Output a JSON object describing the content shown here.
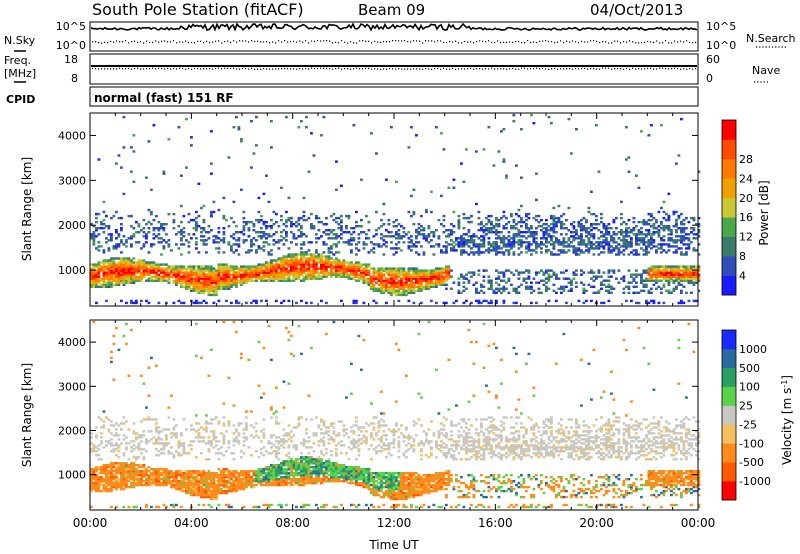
{
  "header": {
    "station": "South Pole Station (fitACF)",
    "beam": "Beam 09",
    "date": "04/Oct/2013"
  },
  "side_labels": {
    "nsky": "N.Sky",
    "freq_line1": "Freq.",
    "freq_line2": "[MHz]",
    "cpid": "CPID",
    "nsearch": "N.Search",
    "nave": "Nave"
  },
  "mode_text": "normal (fast) 151 RF",
  "colors": {
    "power_scale": [
      "#1a1aff",
      "#2e4fb8",
      "#3a7a6a",
      "#4aa84a",
      "#c8c832",
      "#f0a000",
      "#ff7800",
      "#ff4a00",
      "#ff0000"
    ],
    "velocity_scale": [
      "#ff0000",
      "#ff5a00",
      "#ff8c1a",
      "#f5c060",
      "#c8c8c0",
      "#5ad24a",
      "#2aa060",
      "#2a6aa0",
      "#1a2aff"
    ]
  },
  "chart_data": [
    {
      "type": "line",
      "title": "",
      "panel": "noise",
      "xlabel": "",
      "ylabel_left": "N.Sky",
      "ylabel_right": "N.Search",
      "yticks_left": [
        "10^5",
        "10^0"
      ],
      "yticks_right": [
        "10^5",
        "10^0"
      ],
      "scale": "log"
    },
    {
      "type": "line",
      "panel": "freq_nave",
      "ylabel_left": "Freq. [MHz]",
      "ylabel_right": "Nave",
      "yticks_left": [
        "18",
        "8"
      ],
      "yticks_right": [
        "60",
        "0"
      ],
      "freq_value_mhz": 12,
      "nave_value": 30
    },
    {
      "type": "heatmap",
      "panel": "power",
      "xlabel": "",
      "ylabel": "Slant Range [km]",
      "ylim": [
        200,
        4500
      ],
      "yticks": [
        "1000",
        "2000",
        "3000",
        "4000"
      ],
      "colorbar_label": "Power [dB]",
      "colorbar_ticks": [
        "4",
        "8",
        "12",
        "16",
        "20",
        "24",
        "28"
      ],
      "colorbar_range": [
        0,
        32
      ]
    },
    {
      "type": "heatmap",
      "panel": "velocity",
      "xlabel": "Time UT",
      "ylabel": "Slant Range [km]",
      "ylim": [
        200,
        4500
      ],
      "yticks": [
        "1000",
        "2000",
        "3000",
        "4000"
      ],
      "xticks": [
        "00:00",
        "04:00",
        "08:00",
        "12:00",
        "16:00",
        "20:00",
        "00:00"
      ],
      "colorbar_label": "Velocity [m s-1]",
      "colorbar_ticks": [
        "1000",
        "500",
        "100",
        "25",
        "-25",
        "-100",
        "-500",
        "-1000"
      ]
    }
  ]
}
